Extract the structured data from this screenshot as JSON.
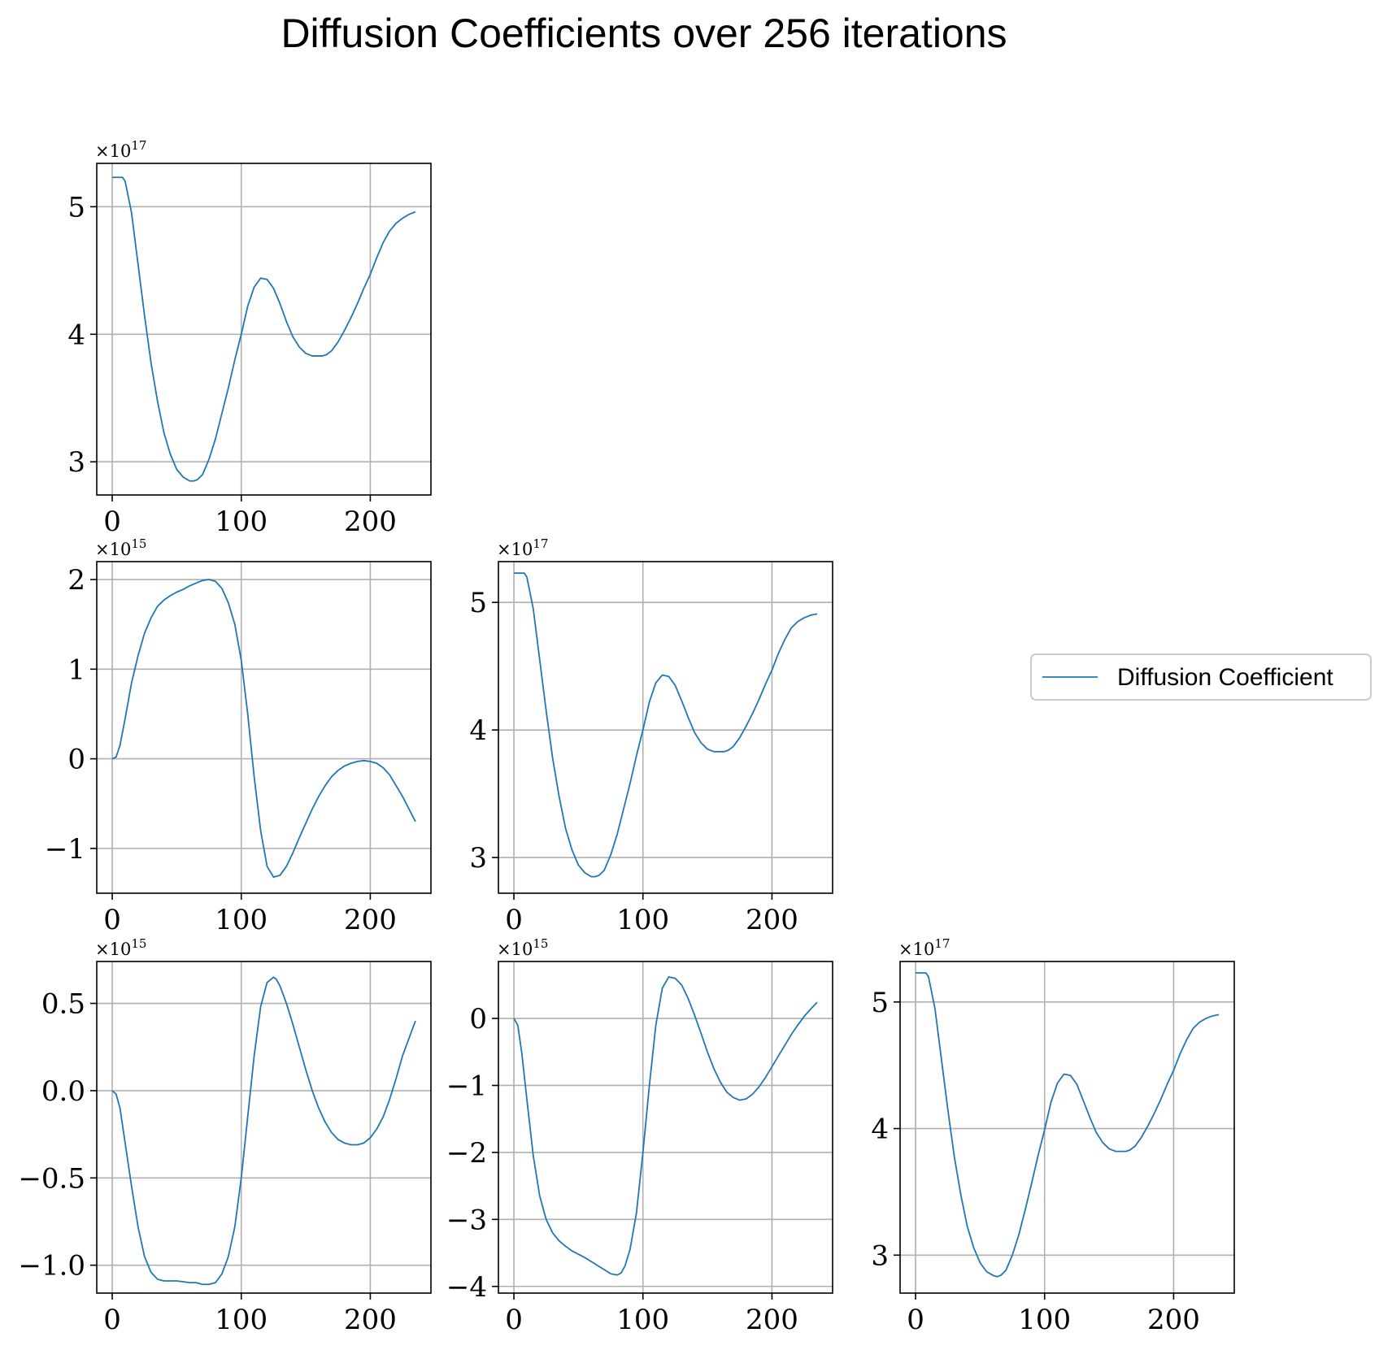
{
  "figure": {
    "title": "Diffusion Coefficients over 256 iterations",
    "legend": {
      "label": "Diffusion Coefficient",
      "placement": "right"
    },
    "line_color": "#1f77b4",
    "grid_color": "#b0b0b0"
  },
  "chart_data": [
    {
      "type": "line",
      "grid": true,
      "row": 0,
      "col": 0,
      "xlim": [
        -12,
        247
      ],
      "ylim": [
        2.74,
        5.34
      ],
      "xticks": [
        0,
        100,
        200
      ],
      "yticks": [
        3,
        4,
        5
      ],
      "ytick_labels": [
        "3",
        "4",
        "5"
      ],
      "offset": {
        "base": "×10",
        "exp": "17"
      },
      "series": [
        {
          "x": [
            0,
            4,
            8,
            10,
            15,
            20,
            25,
            30,
            35,
            40,
            45,
            50,
            55,
            60,
            63,
            66,
            70,
            75,
            80,
            85,
            90,
            95,
            100,
            105,
            110,
            115,
            120,
            125,
            130,
            135,
            140,
            145,
            150,
            155,
            160,
            163,
            166,
            170,
            175,
            180,
            185,
            190,
            195,
            200,
            205,
            210,
            215,
            220,
            225,
            230,
            235
          ],
          "values": [
            5.23,
            5.23,
            5.23,
            5.2,
            4.95,
            4.55,
            4.15,
            3.78,
            3.48,
            3.23,
            3.06,
            2.94,
            2.88,
            2.85,
            2.85,
            2.86,
            2.9,
            3.02,
            3.18,
            3.38,
            3.58,
            3.8,
            4.0,
            4.22,
            4.37,
            4.44,
            4.43,
            4.36,
            4.24,
            4.1,
            3.98,
            3.9,
            3.85,
            3.83,
            3.83,
            3.83,
            3.84,
            3.87,
            3.94,
            4.03,
            4.13,
            4.24,
            4.36,
            4.47,
            4.6,
            4.72,
            4.81,
            4.87,
            4.91,
            4.94,
            4.96
          ]
        }
      ]
    },
    {
      "type": "line",
      "grid": true,
      "row": 1,
      "col": 0,
      "xlim": [
        -12,
        247
      ],
      "ylim": [
        -1.5,
        2.2
      ],
      "xticks": [
        0,
        100,
        200
      ],
      "yticks": [
        -1,
        0,
        1,
        2
      ],
      "ytick_labels": [
        "−1",
        "0",
        "1",
        "2"
      ],
      "offset": {
        "base": "×10",
        "exp": "15"
      },
      "series": [
        {
          "x": [
            0,
            3,
            6,
            10,
            15,
            20,
            25,
            30,
            35,
            40,
            45,
            50,
            55,
            60,
            65,
            70,
            75,
            80,
            85,
            90,
            95,
            100,
            105,
            110,
            115,
            120,
            125,
            130,
            135,
            140,
            145,
            150,
            155,
            160,
            165,
            170,
            175,
            180,
            185,
            190,
            195,
            200,
            205,
            210,
            215,
            220,
            225,
            230,
            235
          ],
          "values": [
            0.0,
            0.02,
            0.15,
            0.45,
            0.85,
            1.15,
            1.4,
            1.57,
            1.7,
            1.77,
            1.82,
            1.86,
            1.89,
            1.93,
            1.96,
            1.99,
            2.0,
            1.98,
            1.9,
            1.74,
            1.5,
            1.1,
            0.5,
            -0.2,
            -0.8,
            -1.2,
            -1.32,
            -1.3,
            -1.2,
            -1.05,
            -0.88,
            -0.72,
            -0.56,
            -0.42,
            -0.3,
            -0.2,
            -0.13,
            -0.08,
            -0.05,
            -0.03,
            -0.02,
            -0.03,
            -0.05,
            -0.1,
            -0.18,
            -0.3,
            -0.42,
            -0.56,
            -0.7
          ]
        }
      ]
    },
    {
      "type": "line",
      "grid": true,
      "row": 1,
      "col": 1,
      "xlim": [
        -12,
        247
      ],
      "ylim": [
        2.72,
        5.32
      ],
      "xticks": [
        0,
        100,
        200
      ],
      "yticks": [
        3,
        4,
        5
      ],
      "ytick_labels": [
        "3",
        "4",
        "5"
      ],
      "offset": {
        "base": "×10",
        "exp": "17"
      },
      "series": [
        {
          "x": [
            0,
            4,
            8,
            10,
            15,
            20,
            25,
            30,
            35,
            40,
            45,
            50,
            55,
            60,
            63,
            66,
            70,
            75,
            80,
            85,
            90,
            95,
            100,
            105,
            110,
            115,
            120,
            125,
            130,
            135,
            140,
            145,
            150,
            155,
            160,
            163,
            166,
            170,
            175,
            180,
            185,
            190,
            195,
            200,
            205,
            210,
            215,
            220,
            225,
            230,
            235
          ],
          "values": [
            5.23,
            5.23,
            5.23,
            5.2,
            4.95,
            4.55,
            4.15,
            3.78,
            3.48,
            3.23,
            3.06,
            2.94,
            2.88,
            2.85,
            2.85,
            2.86,
            2.9,
            3.02,
            3.18,
            3.38,
            3.58,
            3.8,
            4.0,
            4.22,
            4.37,
            4.43,
            4.42,
            4.35,
            4.23,
            4.1,
            3.98,
            3.9,
            3.85,
            3.83,
            3.83,
            3.83,
            3.84,
            3.87,
            3.94,
            4.03,
            4.13,
            4.24,
            4.36,
            4.47,
            4.6,
            4.71,
            4.8,
            4.85,
            4.88,
            4.9,
            4.91
          ]
        }
      ]
    },
    {
      "type": "line",
      "grid": true,
      "row": 2,
      "col": 0,
      "xlim": [
        -12,
        247
      ],
      "ylim": [
        -1.16,
        0.74
      ],
      "xticks": [
        0,
        100,
        200
      ],
      "yticks": [
        -1.0,
        -0.5,
        0.0,
        0.5
      ],
      "ytick_labels": [
        "−1.0",
        "−0.5",
        "0.0",
        "0.5"
      ],
      "offset": {
        "base": "×10",
        "exp": "15"
      },
      "series": [
        {
          "x": [
            0,
            3,
            6,
            10,
            15,
            20,
            25,
            30,
            35,
            40,
            45,
            50,
            55,
            60,
            65,
            70,
            75,
            80,
            85,
            90,
            95,
            100,
            105,
            110,
            115,
            120,
            125,
            127,
            130,
            135,
            140,
            145,
            150,
            155,
            160,
            165,
            170,
            175,
            180,
            185,
            190,
            195,
            200,
            205,
            210,
            215,
            220,
            225,
            230,
            235
          ],
          "values": [
            0.0,
            -0.02,
            -0.1,
            -0.3,
            -0.55,
            -0.78,
            -0.95,
            -1.04,
            -1.08,
            -1.09,
            -1.09,
            -1.09,
            -1.095,
            -1.1,
            -1.1,
            -1.11,
            -1.11,
            -1.1,
            -1.05,
            -0.95,
            -0.78,
            -0.5,
            -0.15,
            0.2,
            0.48,
            0.62,
            0.65,
            0.64,
            0.6,
            0.5,
            0.38,
            0.25,
            0.12,
            0.0,
            -0.1,
            -0.18,
            -0.24,
            -0.28,
            -0.3,
            -0.31,
            -0.31,
            -0.3,
            -0.27,
            -0.22,
            -0.15,
            -0.05,
            0.07,
            0.2,
            0.3,
            0.4
          ]
        }
      ]
    },
    {
      "type": "line",
      "grid": true,
      "row": 2,
      "col": 1,
      "xlim": [
        -12,
        247
      ],
      "ylim": [
        -4.1,
        0.85
      ],
      "xticks": [
        0,
        100,
        200
      ],
      "yticks": [
        -4,
        -3,
        -2,
        -1,
        0
      ],
      "ytick_labels": [
        "−4",
        "−3",
        "−2",
        "−1",
        "0"
      ],
      "offset": {
        "base": "×10",
        "exp": "15"
      },
      "series": [
        {
          "x": [
            0,
            3,
            6,
            10,
            15,
            20,
            25,
            30,
            35,
            40,
            45,
            50,
            55,
            60,
            65,
            70,
            75,
            80,
            83,
            86,
            90,
            95,
            100,
            105,
            110,
            115,
            120,
            125,
            130,
            135,
            140,
            145,
            150,
            155,
            160,
            165,
            170,
            175,
            180,
            185,
            190,
            195,
            200,
            205,
            210,
            215,
            220,
            225,
            230,
            235
          ],
          "values": [
            0.0,
            -0.1,
            -0.5,
            -1.2,
            -2.05,
            -2.65,
            -3.0,
            -3.2,
            -3.32,
            -3.4,
            -3.47,
            -3.52,
            -3.57,
            -3.63,
            -3.69,
            -3.75,
            -3.81,
            -3.83,
            -3.8,
            -3.7,
            -3.45,
            -2.9,
            -2.0,
            -1.0,
            -0.1,
            0.45,
            0.62,
            0.6,
            0.5,
            0.3,
            0.05,
            -0.22,
            -0.5,
            -0.75,
            -0.95,
            -1.1,
            -1.18,
            -1.22,
            -1.2,
            -1.13,
            -1.02,
            -0.88,
            -0.72,
            -0.56,
            -0.4,
            -0.24,
            -0.1,
            0.03,
            0.14,
            0.24
          ]
        }
      ]
    },
    {
      "type": "line",
      "grid": true,
      "row": 2,
      "col": 2,
      "xlim": [
        -12,
        247
      ],
      "ylim": [
        2.7,
        5.32
      ],
      "xticks": [
        0,
        100,
        200
      ],
      "yticks": [
        3,
        4,
        5
      ],
      "ytick_labels": [
        "3",
        "4",
        "5"
      ],
      "offset": {
        "base": "×10",
        "exp": "17"
      },
      "series": [
        {
          "x": [
            0,
            4,
            8,
            10,
            15,
            20,
            25,
            30,
            35,
            40,
            45,
            50,
            55,
            60,
            63,
            66,
            70,
            75,
            80,
            85,
            90,
            95,
            100,
            105,
            110,
            115,
            120,
            125,
            130,
            135,
            140,
            145,
            150,
            155,
            160,
            163,
            166,
            170,
            175,
            180,
            185,
            190,
            195,
            200,
            205,
            210,
            215,
            220,
            225,
            230,
            235
          ],
          "values": [
            5.23,
            5.23,
            5.23,
            5.2,
            4.95,
            4.55,
            4.15,
            3.78,
            3.48,
            3.23,
            3.06,
            2.94,
            2.87,
            2.84,
            2.83,
            2.84,
            2.88,
            3.0,
            3.16,
            3.36,
            3.57,
            3.79,
            3.99,
            4.21,
            4.36,
            4.43,
            4.42,
            4.35,
            4.22,
            4.09,
            3.97,
            3.89,
            3.84,
            3.82,
            3.82,
            3.82,
            3.83,
            3.86,
            3.93,
            4.02,
            4.12,
            4.23,
            4.35,
            4.46,
            4.59,
            4.7,
            4.79,
            4.84,
            4.87,
            4.89,
            4.9
          ]
        }
      ]
    }
  ]
}
